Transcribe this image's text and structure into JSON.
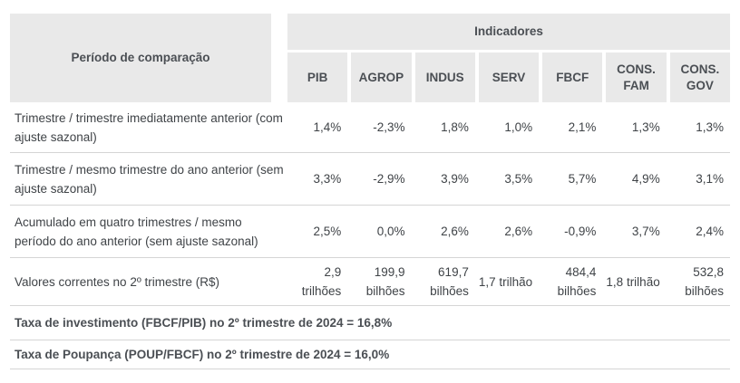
{
  "table": {
    "corner_header": "Período de comparação",
    "group_header": "Indicadores",
    "columns": [
      "PIB",
      "AGROP",
      "INDUS",
      "SERV",
      "FBCF",
      "CONS. FAM",
      "CONS. GOV"
    ],
    "rows": [
      {
        "label": "Trimestre / trimestre imediatamente anterior (com ajuste sazonal)",
        "values": [
          "1,4%",
          "-2,3%",
          "1,8%",
          "1,0%",
          "2,1%",
          "1,3%",
          "1,3%"
        ]
      },
      {
        "label": "Trimestre / mesmo trimestre do ano anterior (sem ajuste sazonal)",
        "values": [
          "3,3%",
          "-2,9%",
          "3,9%",
          "3,5%",
          "5,7%",
          "4,9%",
          "3,1%"
        ]
      },
      {
        "label": "Acumulado em quatro trimestres / mesmo período do ano anterior (sem ajuste sazonal)",
        "values": [
          "2,5%",
          "0,0%",
          "2,6%",
          "2,6%",
          "-0,9%",
          "3,7%",
          "2,4%"
        ]
      },
      {
        "label": "Valores correntes no 2º trimestre (R$)",
        "values": [
          "2,9 trilhões",
          "199,9 bilhões",
          "619,7 bilhões",
          "1,7 trilhão",
          "484,4 bilhões",
          "1,8 trilhão",
          "532,8 bilhões"
        ]
      }
    ],
    "notes": [
      "Taxa de investimento (FBCF/PIB) no 2º trimestre de 2024 = 16,8%",
      "Taxa de Poupança (POUP/FBCF) no 2º trimestre de 2024 = 16,0%"
    ],
    "colors": {
      "header_bg": "#e9e9e9",
      "header_text": "#4b4f54",
      "body_text": "#3f4347",
      "divider": "#d5d5d5"
    }
  },
  "chart_data": {
    "type": "table",
    "title": "Indicadores",
    "row_header": "Período de comparação",
    "columns": [
      "PIB",
      "AGROP",
      "INDUS",
      "SERV",
      "FBCF",
      "CONS. FAM",
      "CONS. GOV"
    ],
    "rows": [
      [
        "Trimestre / trimestre imediatamente anterior (com ajuste sazonal)",
        "1,4%",
        "-2,3%",
        "1,8%",
        "1,0%",
        "2,1%",
        "1,3%",
        "1,3%"
      ],
      [
        "Trimestre / mesmo trimestre do ano anterior (sem ajuste sazonal)",
        "3,3%",
        "-2,9%",
        "3,9%",
        "3,5%",
        "5,7%",
        "4,9%",
        "3,1%"
      ],
      [
        "Acumulado em quatro trimestres / mesmo período do ano anterior (sem ajuste sazonal)",
        "2,5%",
        "0,0%",
        "2,6%",
        "2,6%",
        "-0,9%",
        "3,7%",
        "2,4%"
      ],
      [
        "Valores correntes no 2º trimestre (R$)",
        "2,9 trilhões",
        "199,9 bilhões",
        "619,7 bilhões",
        "1,7 trilhão",
        "484,4 bilhões",
        "1,8 trilhão",
        "532,8 bilhões"
      ]
    ],
    "annotations": [
      "Taxa de investimento (FBCF/PIB) no 2º trimestre de 2024 = 16,8%",
      "Taxa de Poupança (POUP/FBCF) no 2º trimestre de 2024 = 16,0%"
    ]
  }
}
